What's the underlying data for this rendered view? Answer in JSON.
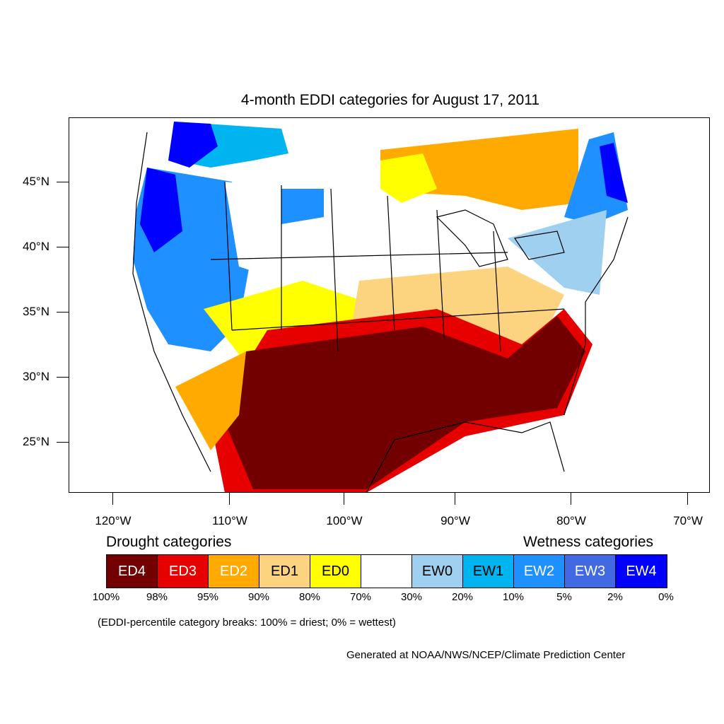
{
  "title": "4-month EDDI categories for August 17, 2011",
  "lat_labels": [
    "45°N",
    "40°N",
    "35°N",
    "30°N",
    "25°N"
  ],
  "lon_labels": [
    "120°W",
    "110°W",
    "100°W",
    "90°W",
    "80°W",
    "70°W"
  ],
  "drought_heading": "Drought categories",
  "wetness_heading": "Wetness categories",
  "legend": [
    {
      "label": "ED4",
      "color": "#730000",
      "text_color": "#ffffff"
    },
    {
      "label": "ED3",
      "color": "#e60000",
      "text_color": "#ffffff"
    },
    {
      "label": "ED2",
      "color": "#ffaa00",
      "text_color": "#ffffff"
    },
    {
      "label": "ED1",
      "color": "#fcd37f",
      "text_color": "#000000"
    },
    {
      "label": "ED0",
      "color": "#ffff00",
      "text_color": "#000000"
    },
    {
      "label": "",
      "color": "#ffffff",
      "text_color": "#000000"
    },
    {
      "label": "EW0",
      "color": "#9fd0f0",
      "text_color": "#000000"
    },
    {
      "label": "EW1",
      "color": "#00b4f0",
      "text_color": "#000000"
    },
    {
      "label": "EW2",
      "color": "#1e90ff",
      "text_color": "#ffffff"
    },
    {
      "label": "EW3",
      "color": "#4169e1",
      "text_color": "#ffffff"
    },
    {
      "label": "EW4",
      "color": "#0000ff",
      "text_color": "#ffffff"
    }
  ],
  "percentiles": [
    "100%",
    "98%",
    "95%",
    "90%",
    "80%",
    "70%",
    "30%",
    "20%",
    "10%",
    "5%",
    "2%",
    "0%"
  ],
  "note": "(EDDI-percentile category breaks: 100% = driest; 0% = wettest)",
  "credit": "Generated at NOAA/NWS/NCEP/Climate Prediction Center"
}
